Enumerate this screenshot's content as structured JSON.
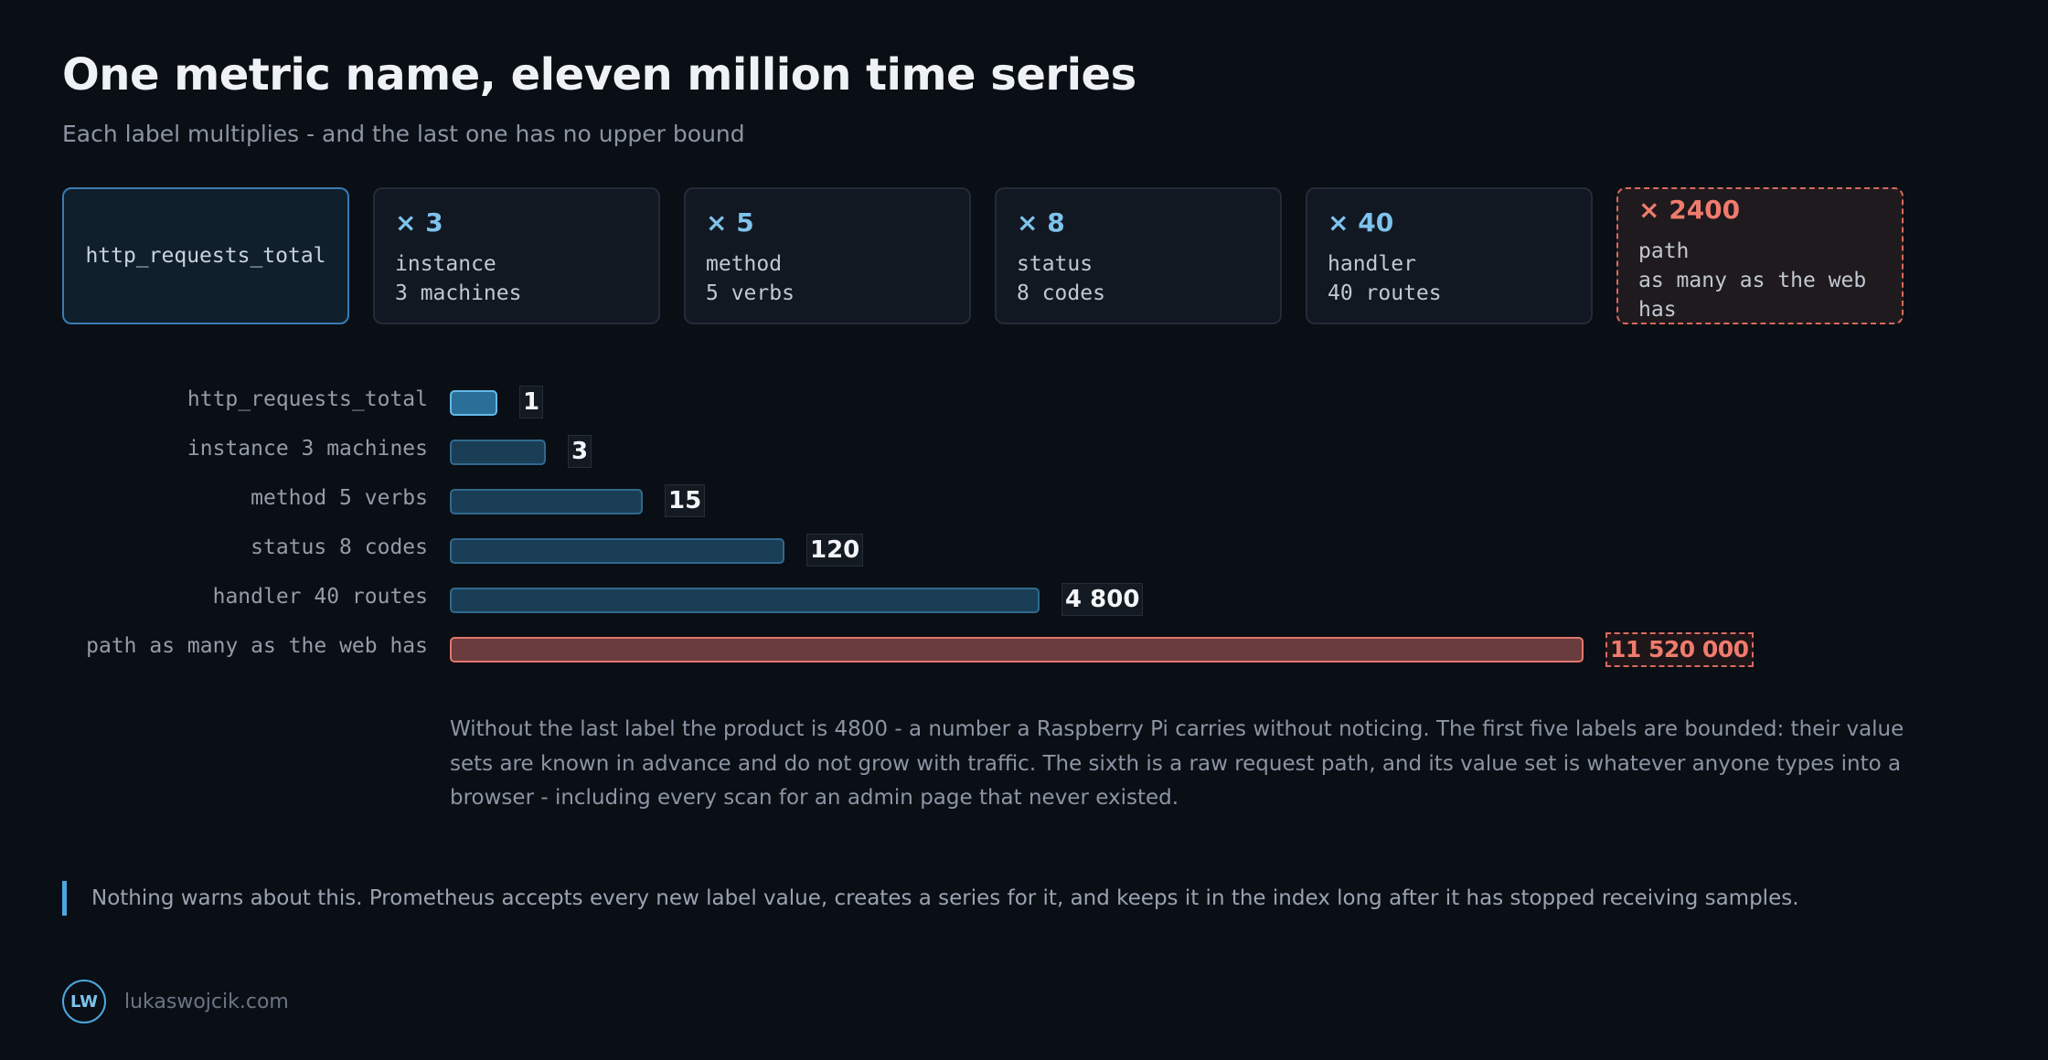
{
  "header": {
    "title": "One metric name, eleven million time series",
    "subtitle": "Each label multiplies - and the last one has no upper bound"
  },
  "cards": [
    {
      "multiplier": "",
      "name": "http_requests_total",
      "desc": ""
    },
    {
      "multiplier": "× 3",
      "name": "instance",
      "desc": "3 machines"
    },
    {
      "multiplier": "× 5",
      "name": "method",
      "desc": "5 verbs"
    },
    {
      "multiplier": "× 8",
      "name": "status",
      "desc": "8 codes"
    },
    {
      "multiplier": "× 40",
      "name": "handler",
      "desc": "40 routes"
    },
    {
      "multiplier": "× 2400",
      "name": "path",
      "desc": "as many as the web has"
    }
  ],
  "chart_data": {
    "type": "bar",
    "orientation": "horizontal",
    "categories": [
      "http_requests_total",
      "instance 3 machines",
      "method 5 verbs",
      "status 8 codes",
      "handler 40 routes",
      "path as many as the web has"
    ],
    "values": [
      1,
      3,
      15,
      120,
      4800,
      11520000
    ],
    "value_labels": [
      "1",
      "3",
      "15",
      "120",
      "4 800",
      "11 520 000"
    ],
    "bar_fraction": [
      0.042,
      0.085,
      0.17,
      0.295,
      0.52,
      1.0
    ],
    "scale": "non-linear (compressed)",
    "highlight_index": 5,
    "colors": {
      "bar": "#1a3e55",
      "bar_border": "#2f6a8e",
      "first_bar": "#2a6f98",
      "danger_bar": "#6a3b3f",
      "danger": "#e0786c",
      "accent": "#4aa8e0"
    }
  },
  "note": "Without the last label the product is 4800 - a number a Raspberry Pi carries without noticing. The first five labels are bounded: their value sets are known in advance and do not grow with traffic. The sixth is a raw request path, and its value set is whatever anyone types into a browser - including every scan for an admin page that never existed.",
  "callout": "Nothing warns about this. Prometheus accepts every new label value, creates a series for it, and keeps it in the index long after it has stopped receiving samples.",
  "footer": {
    "logo": "LW",
    "site": "lukaswojcik.com"
  }
}
